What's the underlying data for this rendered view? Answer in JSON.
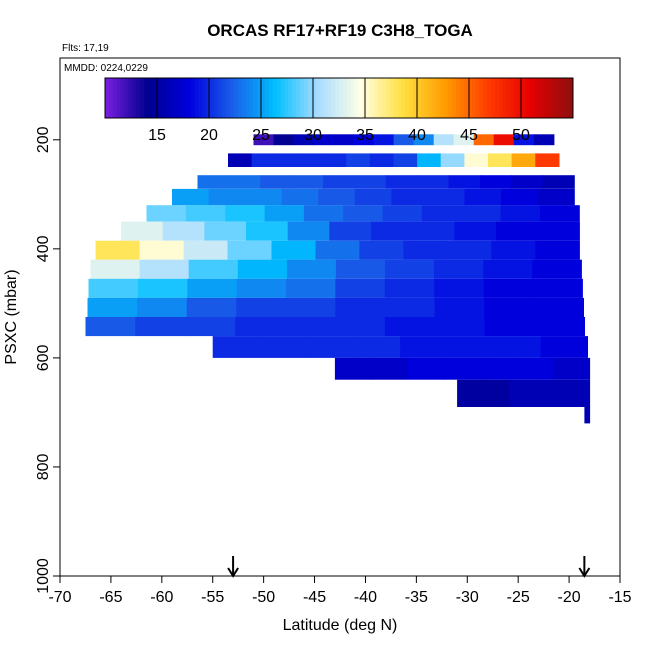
{
  "chart_data": {
    "type": "heatmap",
    "title": "ORCAS RF17+RF19 C3H8_TOGA",
    "flights_note": "Flts: 17,19",
    "date_note": "MMDD: 0224,0229",
    "xlabel": "Latitude (deg N)",
    "ylabel": "PSXC (mbar)",
    "xlim": [
      -70,
      -15
    ],
    "ylim": [
      1000,
      50
    ],
    "y_reversed": true,
    "x_ticks": [
      -70,
      -65,
      -60,
      -55,
      -50,
      -45,
      -40,
      -35,
      -30,
      -25,
      -20,
      -15
    ],
    "y_ticks": [
      200,
      400,
      600,
      800,
      1000
    ],
    "grid": false,
    "colorbar": {
      "ticks": [
        15,
        20,
        25,
        30,
        35,
        40,
        45,
        50
      ],
      "range": [
        10,
        55
      ],
      "colors": [
        "#7a1fe0",
        "#00008f",
        "#0000e0",
        "#1a5fe8",
        "#00bfff",
        "#a8dcff",
        "#ffffe6",
        "#ffe040",
        "#ff9c00",
        "#ff3c00",
        "#e60000",
        "#8c1010"
      ]
    },
    "arrows_x": [
      -53,
      -18.5
    ],
    "layers": [
      {
        "p_top": 190,
        "p_bot": 210,
        "x_start": -51,
        "x_end": -21.5,
        "values": [
          12,
          14,
          16,
          17,
          17,
          18,
          19,
          22,
          24,
          31,
          33,
          45,
          50,
          19,
          16
        ]
      },
      {
        "p_top": 225,
        "p_bot": 250,
        "x_start": -53.5,
        "x_end": -21,
        "values": [
          16,
          20,
          20,
          20,
          20,
          21,
          20,
          21,
          26,
          30,
          35,
          38,
          42,
          47
        ]
      },
      {
        "p_top": 265,
        "p_bot": 290,
        "x_start": -56.5,
        "x_end": -19.5,
        "values": [
          23,
          23,
          22,
          22,
          21,
          21,
          20,
          20,
          19,
          18,
          17,
          16
        ]
      },
      {
        "p_top": 290,
        "p_bot": 320,
        "x_start": -59,
        "x_end": -19.5,
        "values": [
          25,
          24,
          24,
          23,
          22,
          21,
          20,
          20,
          19,
          18,
          17
        ]
      },
      {
        "p_top": 320,
        "p_bot": 350,
        "x_start": -61.5,
        "x_end": -19,
        "values": [
          29,
          28,
          27,
          25,
          23,
          22,
          21,
          20,
          20,
          19,
          18
        ]
      },
      {
        "p_top": 350,
        "p_bot": 385,
        "x_start": -64,
        "x_end": -19,
        "values": [
          33,
          31,
          29,
          27,
          24,
          21,
          20,
          20,
          19,
          18,
          18
        ]
      },
      {
        "p_top": 385,
        "p_bot": 420,
        "x_start": -66.5,
        "x_end": -19,
        "values": [
          38,
          35,
          32,
          29,
          26,
          23,
          21,
          20,
          20,
          19,
          18
        ]
      },
      {
        "p_top": 420,
        "p_bot": 455,
        "x_start": -67,
        "x_end": -18.8,
        "values": [
          33,
          31,
          28,
          26,
          24,
          22,
          21,
          20,
          19,
          18
        ]
      },
      {
        "p_top": 455,
        "p_bot": 490,
        "x_start": -67.2,
        "x_end": -18.7,
        "values": [
          28,
          27,
          25,
          24,
          23,
          21,
          20,
          19,
          18,
          18
        ]
      },
      {
        "p_top": 490,
        "p_bot": 525,
        "x_start": -67.3,
        "x_end": -18.6,
        "values": [
          25,
          24,
          22,
          21,
          21,
          20,
          20,
          19,
          18,
          18
        ]
      },
      {
        "p_top": 525,
        "p_bot": 560,
        "x_start": -67.5,
        "x_end": -18.5,
        "values": [
          22,
          21,
          21,
          20,
          20,
          20,
          19,
          19,
          18,
          18
        ]
      },
      {
        "p_top": 560,
        "p_bot": 600,
        "x_start": -55,
        "x_end": -18.2,
        "values": [
          20,
          20,
          20,
          20,
          19,
          19,
          19,
          18
        ]
      },
      {
        "p_top": 600,
        "p_bot": 640,
        "x_start": -43,
        "x_end": -18,
        "values": [
          17,
          17,
          18,
          18,
          18,
          18,
          17
        ]
      },
      {
        "p_top": 640,
        "p_bot": 690,
        "x_start": -31,
        "x_end": -18,
        "values": [
          15,
          15,
          16,
          16,
          16
        ]
      },
      {
        "p_top": 690,
        "p_bot": 720,
        "x_start": -18.5,
        "x_end": -18,
        "values": [
          16
        ]
      }
    ]
  }
}
